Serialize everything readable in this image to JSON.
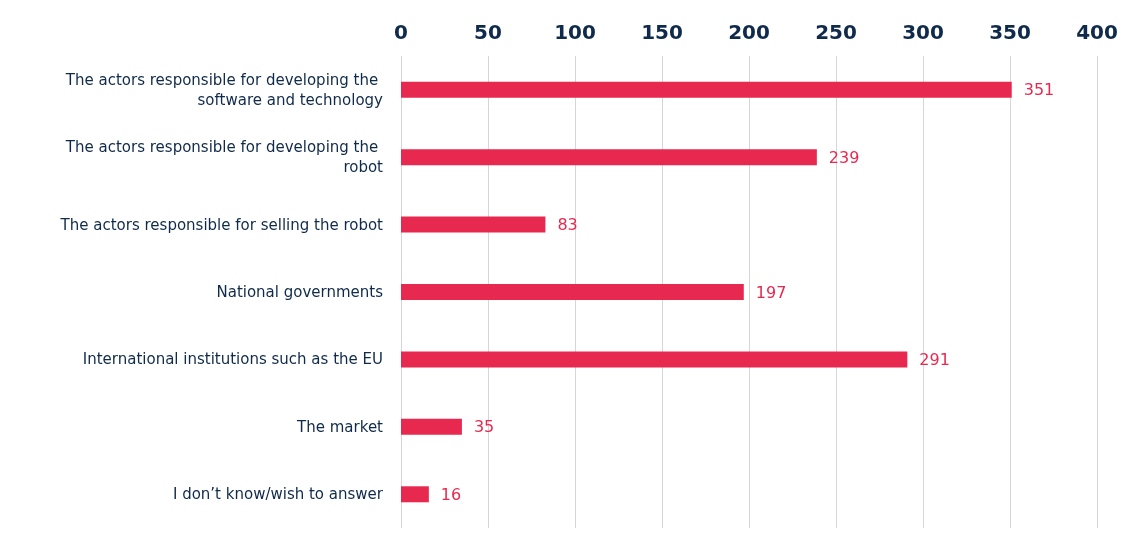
{
  "chart_data": {
    "type": "bar",
    "orientation": "horizontal",
    "categories": [
      "The actors responsible for developing the software and technology",
      "The actors responsible for developing the robot",
      "The actors responsible for selling the robot",
      "National governments",
      "International institutions such as the EU",
      "The market",
      "I don’t know/wish to answer"
    ],
    "values": [
      351,
      239,
      83,
      197,
      291,
      35,
      16
    ],
    "color": "#e8294f",
    "xlim": [
      0,
      400
    ],
    "xticks": [
      0,
      50,
      100,
      150,
      200,
      250,
      300,
      350,
      400
    ],
    "grid": "x",
    "data_labels": true
  }
}
